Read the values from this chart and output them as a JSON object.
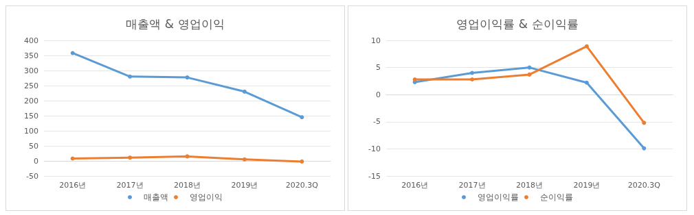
{
  "chart_data": [
    {
      "type": "line",
      "title": "매출액 & 영업이익",
      "categories": [
        "2016년",
        "2017년",
        "2018년",
        "2019년",
        "2020.3Q"
      ],
      "series": [
        {
          "name": "매출액",
          "color": "#5b9bd5",
          "values": [
            358,
            280,
            277,
            230,
            145
          ]
        },
        {
          "name": "영업이익",
          "color": "#ed7d31",
          "values": [
            8,
            11,
            15,
            5,
            -2
          ]
        }
      ],
      "ylim": [
        -50,
        400
      ],
      "yticks": [
        -50,
        0,
        50,
        100,
        150,
        200,
        250,
        300,
        350,
        400
      ],
      "grid": "y",
      "legend": "bottom",
      "marker": "circle"
    },
    {
      "type": "line",
      "title": "영업이익률 & 순이익률",
      "categories": [
        "2016년",
        "2017년",
        "2018년",
        "2019년",
        "2020.3Q"
      ],
      "series": [
        {
          "name": "영업이익률",
          "color": "#5b9bd5",
          "values": [
            2.3,
            4,
            5,
            2.2,
            -9.9
          ]
        },
        {
          "name": "순이익률",
          "color": "#ed7d31",
          "values": [
            2.8,
            2.8,
            3.7,
            8.9,
            -5.2
          ]
        }
      ],
      "ylim": [
        -15,
        10
      ],
      "yticks": [
        -15,
        -10,
        -5,
        0,
        5,
        10
      ],
      "grid": "y",
      "legend": "bottom",
      "marker": "circle"
    }
  ]
}
